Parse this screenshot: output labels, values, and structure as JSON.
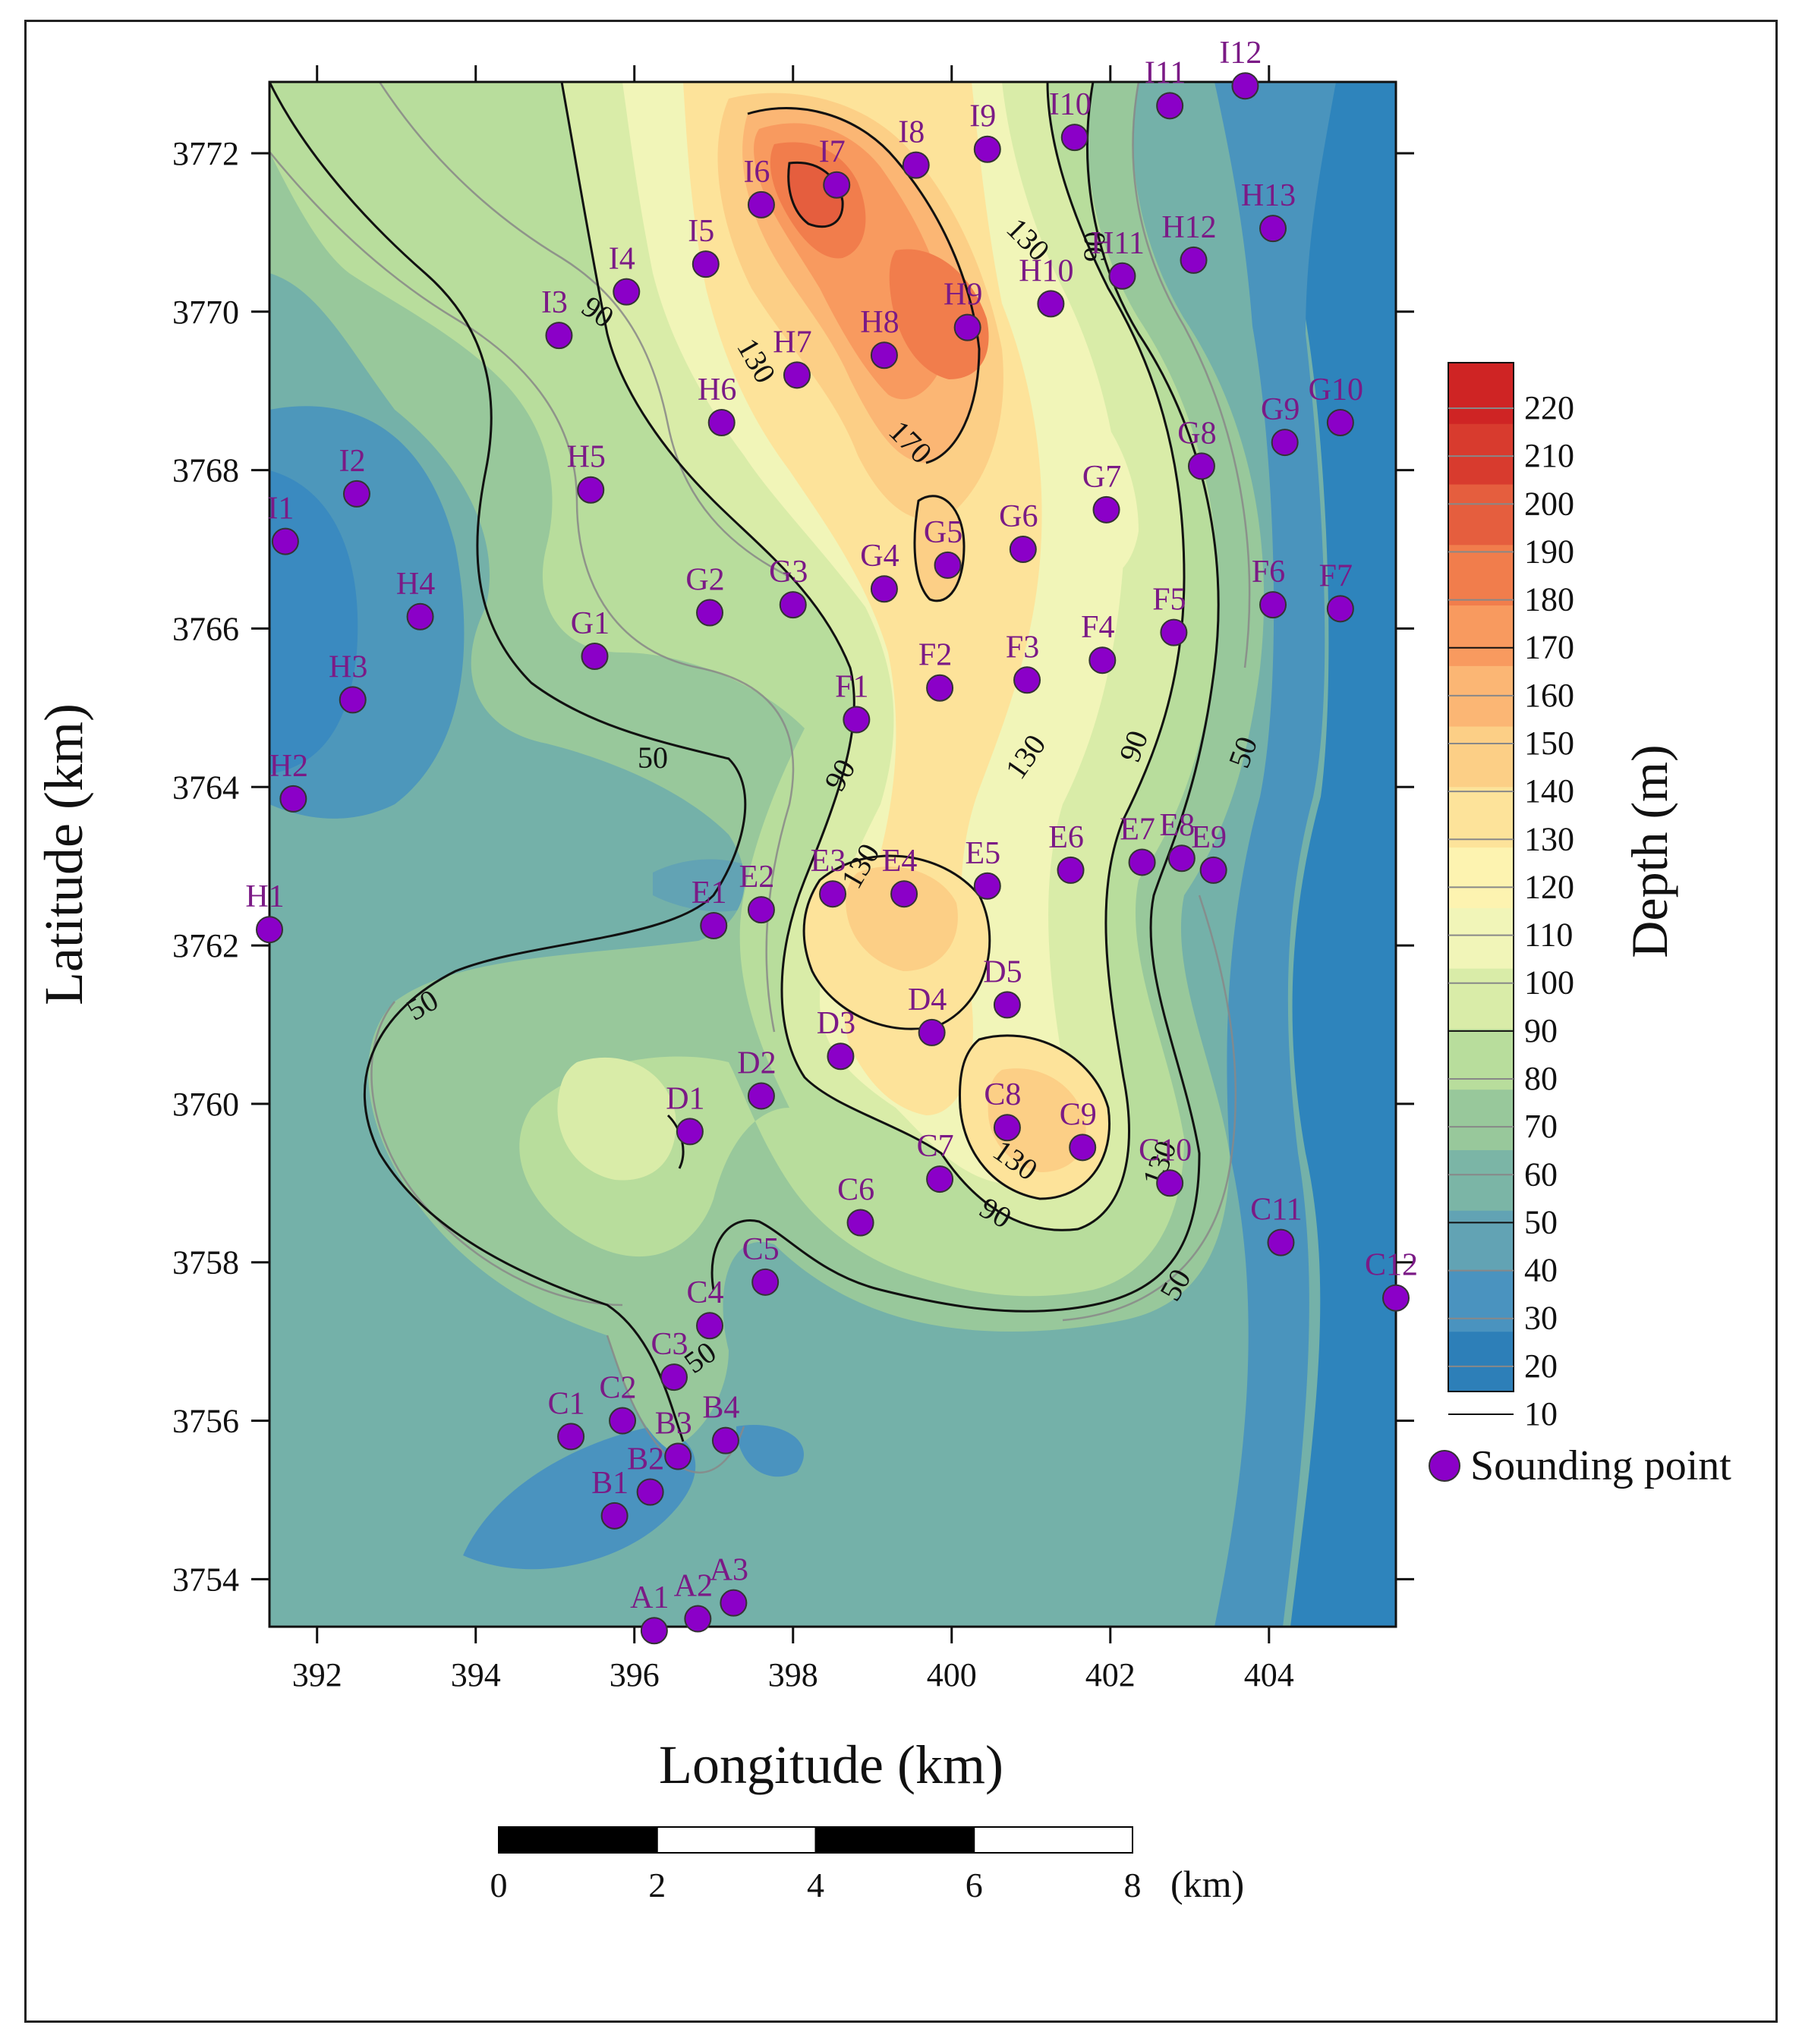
{
  "map": {
    "x_axis_label": "Longitude (km)",
    "y_axis_label": "Latitude (km)",
    "x_ticks": [
      "392",
      "394",
      "396",
      "398",
      "400",
      "402",
      "404"
    ],
    "y_ticks": [
      "3772",
      "3770",
      "3768",
      "3766",
      "3764",
      "3762",
      "3760",
      "3758",
      "3756",
      "3754"
    ],
    "xlim": [
      391.4,
      405.6
    ],
    "ylim": [
      3753.4,
      3772.9
    ],
    "contour_labels": [
      "50",
      "50",
      "50",
      "50",
      "50",
      "90",
      "90",
      "90",
      "90",
      "90",
      "130",
      "130",
      "130",
      "130",
      "130",
      "130",
      "170"
    ],
    "colorbar": {
      "label": "Depth (m)",
      "ticks": [
        "220",
        "210",
        "200",
        "190",
        "180",
        "170",
        "160",
        "150",
        "140",
        "130",
        "120",
        "110",
        "100",
        "90",
        "80",
        "70",
        "60",
        "50",
        "40",
        "30",
        "20",
        "10"
      ],
      "colors": [
        "#2d7fb8",
        "#4a93bf",
        "#62a3b4",
        "#7bb5a6",
        "#98c89b",
        "#b8dd9c",
        "#d9eca8",
        "#f1f5b8",
        "#fdf3b0",
        "#fde39a",
        "#fccf86",
        "#fbb674",
        "#f89a5f",
        "#f17d4c",
        "#e55e3e",
        "#d83b2e",
        "#cf2424"
      ]
    },
    "legend": {
      "label": "Sounding point",
      "marker_color": "#8b00c8"
    },
    "scale_bar": {
      "ticks": [
        "0",
        "2",
        "4",
        "6",
        "8"
      ],
      "unit": "(km)"
    },
    "sounding_points": [
      {
        "id": "A1",
        "lon": 396.25,
        "lat": 3753.35
      },
      {
        "id": "A2",
        "lon": 396.8,
        "lat": 3753.5
      },
      {
        "id": "A3",
        "lon": 397.25,
        "lat": 3753.7
      },
      {
        "id": "B1",
        "lon": 395.75,
        "lat": 3754.8
      },
      {
        "id": "B2",
        "lon": 396.2,
        "lat": 3755.1
      },
      {
        "id": "B3",
        "lon": 396.55,
        "lat": 3755.55
      },
      {
        "id": "B4",
        "lon": 397.15,
        "lat": 3755.75
      },
      {
        "id": "C1",
        "lon": 395.2,
        "lat": 3755.8
      },
      {
        "id": "C2",
        "lon": 395.85,
        "lat": 3756.0
      },
      {
        "id": "C3",
        "lon": 396.5,
        "lat": 3756.55
      },
      {
        "id": "C4",
        "lon": 396.95,
        "lat": 3757.2
      },
      {
        "id": "C5",
        "lon": 397.65,
        "lat": 3757.75
      },
      {
        "id": "C6",
        "lon": 398.85,
        "lat": 3758.5
      },
      {
        "id": "C7",
        "lon": 399.85,
        "lat": 3759.05
      },
      {
        "id": "C8",
        "lon": 400.7,
        "lat": 3759.7
      },
      {
        "id": "C9",
        "lon": 401.65,
        "lat": 3759.45
      },
      {
        "id": "C10",
        "lon": 402.75,
        "lat": 3759.0
      },
      {
        "id": "C11",
        "lon": 404.15,
        "lat": 3758.25
      },
      {
        "id": "C12",
        "lon": 405.6,
        "lat": 3757.55
      },
      {
        "id": "D1",
        "lon": 396.7,
        "lat": 3759.65
      },
      {
        "id": "D2",
        "lon": 397.6,
        "lat": 3760.1
      },
      {
        "id": "D3",
        "lon": 398.6,
        "lat": 3760.6
      },
      {
        "id": "D4",
        "lon": 399.75,
        "lat": 3760.9
      },
      {
        "id": "D5",
        "lon": 400.7,
        "lat": 3761.25
      },
      {
        "id": "E1",
        "lon": 397.0,
        "lat": 3762.25
      },
      {
        "id": "E2",
        "lon": 397.6,
        "lat": 3762.45
      },
      {
        "id": "E3",
        "lon": 398.5,
        "lat": 3762.65
      },
      {
        "id": "E4",
        "lon": 399.4,
        "lat": 3762.65
      },
      {
        "id": "E5",
        "lon": 400.45,
        "lat": 3762.75
      },
      {
        "id": "E6",
        "lon": 401.5,
        "lat": 3762.95
      },
      {
        "id": "E7",
        "lon": 402.4,
        "lat": 3763.05
      },
      {
        "id": "E8",
        "lon": 402.9,
        "lat": 3763.1
      },
      {
        "id": "E9",
        "lon": 403.3,
        "lat": 3762.95
      },
      {
        "id": "F1",
        "lon": 398.8,
        "lat": 3764.85
      },
      {
        "id": "F2",
        "lon": 399.85,
        "lat": 3765.25
      },
      {
        "id": "F3",
        "lon": 400.95,
        "lat": 3765.35
      },
      {
        "id": "F4",
        "lon": 401.9,
        "lat": 3765.6
      },
      {
        "id": "F5",
        "lon": 402.8,
        "lat": 3765.95
      },
      {
        "id": "F6",
        "lon": 404.05,
        "lat": 3766.3
      },
      {
        "id": "F7",
        "lon": 404.9,
        "lat": 3766.25
      },
      {
        "id": "G1",
        "lon": 395.5,
        "lat": 3765.65
      },
      {
        "id": "G2",
        "lon": 396.95,
        "lat": 3766.2
      },
      {
        "id": "G3",
        "lon": 398.0,
        "lat": 3766.3
      },
      {
        "id": "G4",
        "lon": 399.15,
        "lat": 3766.5
      },
      {
        "id": "G5",
        "lon": 399.95,
        "lat": 3766.8
      },
      {
        "id": "G6",
        "lon": 400.9,
        "lat": 3767.0
      },
      {
        "id": "G7",
        "lon": 401.95,
        "lat": 3767.5
      },
      {
        "id": "G8",
        "lon": 403.15,
        "lat": 3768.05
      },
      {
        "id": "G9",
        "lon": 404.2,
        "lat": 3768.35
      },
      {
        "id": "G10",
        "lon": 404.9,
        "lat": 3768.6
      },
      {
        "id": "H1",
        "lon": 391.4,
        "lat": 3762.2
      },
      {
        "id": "H2",
        "lon": 391.7,
        "lat": 3763.85
      },
      {
        "id": "H3",
        "lon": 392.45,
        "lat": 3765.1
      },
      {
        "id": "H4",
        "lon": 393.3,
        "lat": 3766.15
      },
      {
        "id": "H5",
        "lon": 395.45,
        "lat": 3767.75
      },
      {
        "id": "H6",
        "lon": 397.1,
        "lat": 3768.6
      },
      {
        "id": "H7",
        "lon": 398.05,
        "lat": 3769.2
      },
      {
        "id": "H8",
        "lon": 399.15,
        "lat": 3769.45
      },
      {
        "id": "H9",
        "lon": 400.2,
        "lat": 3769.8
      },
      {
        "id": "H10",
        "lon": 401.25,
        "lat": 3770.1
      },
      {
        "id": "H11",
        "lon": 402.15,
        "lat": 3770.45
      },
      {
        "id": "H12",
        "lon": 403.05,
        "lat": 3770.65
      },
      {
        "id": "H13",
        "lon": 404.05,
        "lat": 3771.05
      },
      {
        "id": "I1",
        "lon": 391.6,
        "lat": 3767.1
      },
      {
        "id": "I2",
        "lon": 392.5,
        "lat": 3767.7
      },
      {
        "id": "I3",
        "lon": 395.05,
        "lat": 3769.7
      },
      {
        "id": "I4",
        "lon": 395.9,
        "lat": 3770.25
      },
      {
        "id": "I5",
        "lon": 396.9,
        "lat": 3770.6
      },
      {
        "id": "I6",
        "lon": 397.6,
        "lat": 3771.35
      },
      {
        "id": "I7",
        "lon": 398.55,
        "lat": 3771.6
      },
      {
        "id": "I8",
        "lon": 399.55,
        "lat": 3771.85
      },
      {
        "id": "I9",
        "lon": 400.45,
        "lat": 3772.05
      },
      {
        "id": "I10",
        "lon": 401.55,
        "lat": 3772.2
      },
      {
        "id": "I11",
        "lon": 402.75,
        "lat": 3772.6
      },
      {
        "id": "I12",
        "lon": 403.7,
        "lat": 3772.85
      }
    ]
  }
}
